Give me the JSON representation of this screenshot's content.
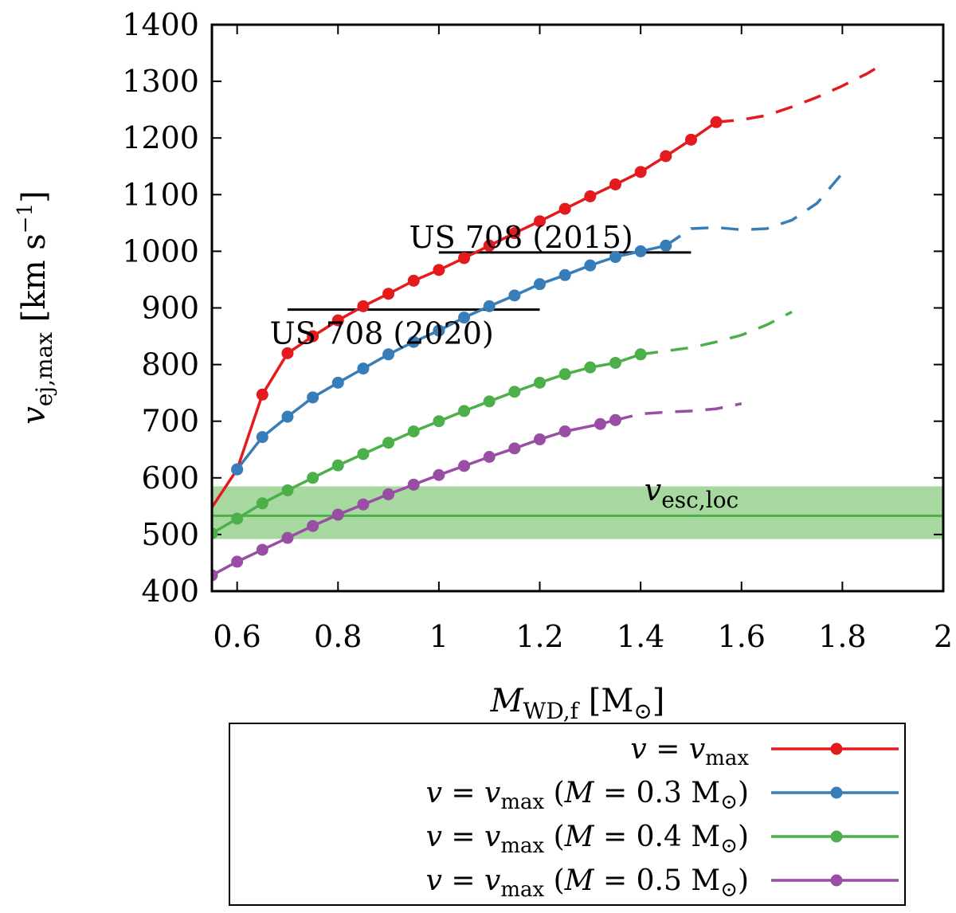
{
  "chart_data": {
    "type": "line",
    "x_axis": {
      "label_main": "M",
      "label_sub": "WD,f",
      "label_unit": "[M",
      "label_unit_sub": "⊙",
      "label_close": "]",
      "xlim": [
        0.55,
        2.0
      ],
      "ticks": [
        0.6,
        0.8,
        1.0,
        1.2,
        1.4,
        1.6,
        1.8,
        2.0
      ],
      "tick_labels": [
        "0.6",
        "0.8",
        "1",
        "1.2",
        "1.4",
        "1.6",
        "1.8",
        "2"
      ]
    },
    "y_axis": {
      "label_main": "v",
      "label_sub": "ej,max",
      "label_unit": "[km s",
      "label_unit_sup": "−1",
      "label_close": "]",
      "ylim": [
        400,
        1400
      ],
      "ticks": [
        400,
        500,
        600,
        700,
        800,
        900,
        1000,
        1100,
        1200,
        1300,
        1400
      ],
      "tick_labels": [
        "400",
        "500",
        "600",
        "700",
        "800",
        "900",
        "1000",
        "1100",
        "1200",
        "1300",
        "1400"
      ]
    },
    "escape_band": {
      "label_main": "v",
      "label_sub": "esc,loc",
      "center": 533,
      "low": 492,
      "high": 585,
      "color": "#4daf4a",
      "band_color": "#a6d8a0"
    },
    "reference_lines": [
      {
        "label": "US 708 (2015)",
        "y": 998,
        "x_start": 1.0,
        "x_end": 1.5
      },
      {
        "label": "US 708 (2020)",
        "y": 897,
        "x_start": 0.7,
        "x_end": 1.2
      }
    ],
    "series": [
      {
        "name": "v = v_max",
        "legend": {
          "v": "v",
          "eq": " = ",
          "vmax": "v",
          "vmax_sub": "max",
          "paren_open": "",
          "m": "",
          "m_eq": "",
          "m_unit": "",
          "m_sub": "",
          "paren_close": ""
        },
        "color": "#e41a1c",
        "x": [
          0.55,
          0.6,
          0.65,
          0.7,
          0.75,
          0.8,
          0.85,
          0.9,
          0.95,
          1.0,
          1.05,
          1.1,
          1.15,
          1.2,
          1.25,
          1.3,
          1.35,
          1.4,
          1.45,
          1.5,
          1.55
        ],
        "y": [
          548,
          615,
          747,
          820,
          850,
          878,
          903,
          925,
          948,
          967,
          988,
          1010,
          1032,
          1053,
          1075,
          1097,
          1118,
          1140,
          1168,
          1197,
          1228
        ],
        "dashed_x": [
          1.55,
          1.6,
          1.65,
          1.7,
          1.75,
          1.8,
          1.85,
          1.87
        ],
        "dashed_y": [
          1228,
          1232,
          1240,
          1255,
          1272,
          1292,
          1314,
          1325
        ]
      },
      {
        "name": "v = v_max (M = 0.3 M_sun)",
        "legend": {
          "v": "v",
          "eq": " = ",
          "vmax": "v",
          "vmax_sub": "max",
          "paren_open": " (",
          "m": "M",
          "m_eq": " = 0.3 M",
          "m_unit": "",
          "m_sub": "⊙",
          "paren_close": ")"
        },
        "color": "#377eb8",
        "x": [
          0.6,
          0.65,
          0.7,
          0.75,
          0.8,
          0.85,
          0.9,
          0.95,
          1.0,
          1.05,
          1.1,
          1.15,
          1.2,
          1.25,
          1.3,
          1.35,
          1.4,
          1.45
        ],
        "y": [
          615,
          672,
          708,
          742,
          768,
          793,
          818,
          840,
          860,
          883,
          903,
          922,
          942,
          958,
          975,
          990,
          1000,
          1010
        ],
        "dashed_x": [
          1.45,
          1.5,
          1.55,
          1.6,
          1.65,
          1.7,
          1.75,
          1.8
        ],
        "dashed_y": [
          1010,
          1040,
          1042,
          1038,
          1040,
          1055,
          1085,
          1138
        ]
      },
      {
        "name": "v = v_max (M = 0.4 M_sun)",
        "legend": {
          "v": "v",
          "eq": " = ",
          "vmax": "v",
          "vmax_sub": "max",
          "paren_open": " (",
          "m": "M",
          "m_eq": " = 0.4 M",
          "m_unit": "",
          "m_sub": "⊙",
          "paren_close": ")"
        },
        "color": "#4daf4a",
        "x": [
          0.55,
          0.6,
          0.65,
          0.7,
          0.75,
          0.8,
          0.85,
          0.9,
          0.95,
          1.0,
          1.05,
          1.1,
          1.15,
          1.2,
          1.25,
          1.3,
          1.35,
          1.4
        ],
        "y": [
          502,
          528,
          555,
          578,
          600,
          622,
          642,
          662,
          682,
          700,
          718,
          735,
          752,
          768,
          783,
          795,
          803,
          818
        ],
        "dashed_x": [
          1.4,
          1.45,
          1.5,
          1.55,
          1.6,
          1.65,
          1.7
        ],
        "dashed_y": [
          818,
          824,
          830,
          840,
          852,
          870,
          893
        ]
      },
      {
        "name": "v = v_max (M = 0.5 M_sun)",
        "legend": {
          "v": "v",
          "eq": " = ",
          "vmax": "v",
          "vmax_sub": "max",
          "paren_open": " (",
          "m": "M",
          "m_eq": " = 0.5 M",
          "m_unit": "",
          "m_sub": "⊙",
          "paren_close": ")"
        },
        "color": "#984ea3",
        "x": [
          0.55,
          0.6,
          0.65,
          0.7,
          0.75,
          0.8,
          0.85,
          0.9,
          0.95,
          1.0,
          1.05,
          1.1,
          1.15,
          1.2,
          1.25,
          1.32,
          1.35
        ],
        "y": [
          428,
          452,
          473,
          494,
          515,
          535,
          553,
          571,
          588,
          605,
          621,
          637,
          652,
          668,
          682,
          695,
          702
        ],
        "dashed_x": [
          1.35,
          1.4,
          1.45,
          1.5,
          1.55,
          1.6
        ],
        "dashed_y": [
          702,
          713,
          716,
          718,
          722,
          731
        ]
      }
    ]
  }
}
